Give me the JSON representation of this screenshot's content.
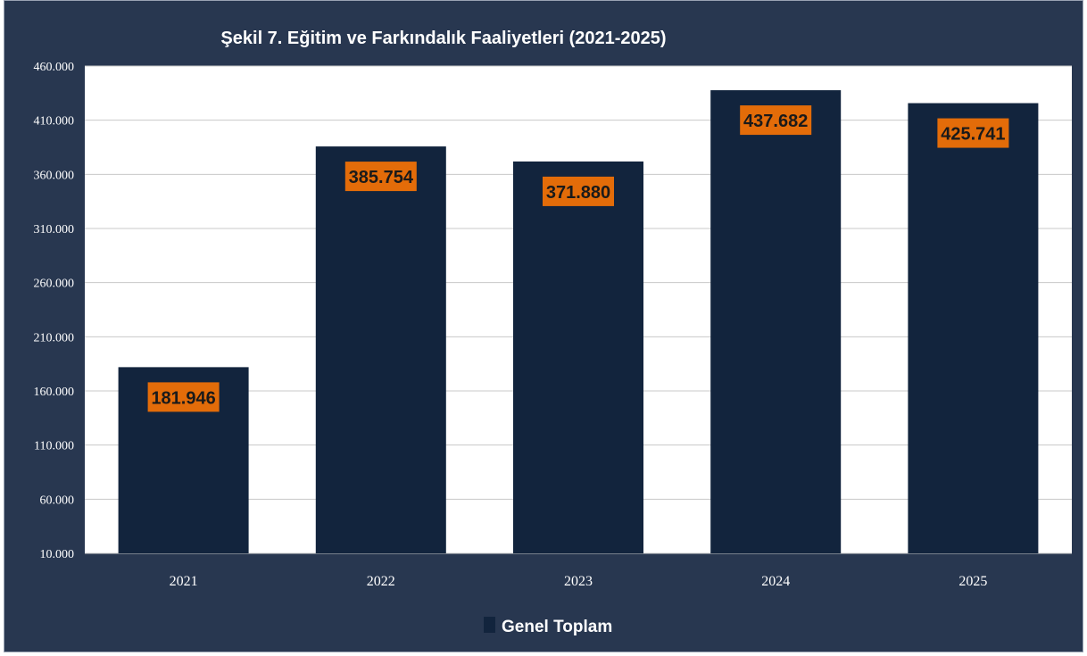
{
  "chart_data": {
    "type": "bar",
    "title": "Şekil  7. Eğitim ve Farkındalık Faaliyetleri (2021-2025)",
    "categories": [
      "2021",
      "2022",
      "2023",
      "2024",
      "2025"
    ],
    "series": [
      {
        "name": "Genel Toplam",
        "values": [
          181946,
          385754,
          371880,
          437682,
          425741
        ],
        "value_labels": [
          "181.946",
          "385.754",
          "371.880",
          "437.682",
          "425.741"
        ]
      }
    ],
    "ylim": [
      10000,
      460000
    ],
    "yticks": [
      10000,
      60000,
      110000,
      160000,
      210000,
      260000,
      310000,
      360000,
      410000,
      460000
    ],
    "ytick_labels": [
      "10.000",
      "60.000",
      "110.000",
      "160.000",
      "210.000",
      "260.000",
      "310.000",
      "360.000",
      "410.000",
      "460.000"
    ],
    "xlabel": "",
    "ylabel": "",
    "grid": true,
    "legend_position": "bottom-center"
  },
  "colors": {
    "background": "#283750",
    "plot_area": "#ffffff",
    "bar": "#12243d",
    "data_label_bg": "#e36c09",
    "gridline": "#c8c8c8"
  }
}
